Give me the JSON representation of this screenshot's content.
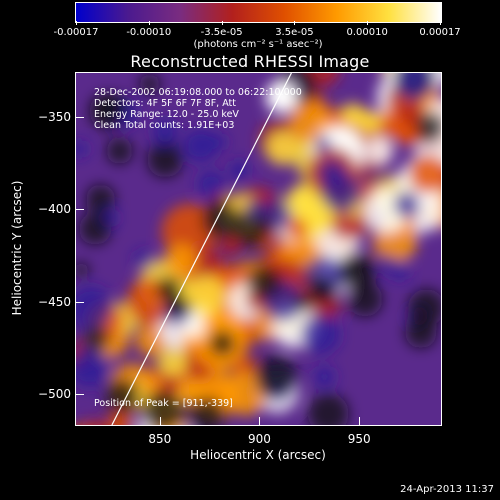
{
  "colorbar": {
    "tick_labels": [
      "-0.00017",
      "-0.00010",
      "-3.5e-05",
      "3.5e-05",
      "0.00010",
      "0.00017"
    ],
    "units_text": "(photons cm⁻² s⁻¹ asec⁻²)",
    "range": [
      -0.00017,
      0.00017
    ],
    "colors": [
      "#0000cc",
      "#4b1a8f",
      "#7a2c80",
      "#b2201d",
      "#e05000",
      "#ff9a00",
      "#ffe040",
      "#ffffff"
    ]
  },
  "title": "Reconstructed RHESSI Image",
  "info": {
    "line1": "28-Dec-2002 06:19:08.000 to 06:22:10.000",
    "line2": "Detectors: 4F 5F 6F 7F 8F, Att",
    "line3": "Energy Range: 12.0 - 25.0 keV",
    "line4": "Clean       Total counts: 1.91E+03",
    "peak": "Position of Peak = [911,-339]"
  },
  "chart_data": {
    "type": "heatmap",
    "title": "Reconstructed RHESSI Image",
    "xlabel": "Heliocentric X (arcsec)",
    "ylabel": "Heliocentric Y (arcsec)",
    "xlim": [
      808,
      991
    ],
    "ylim": [
      -517,
      -326
    ],
    "x_ticks": [
      850,
      900,
      950
    ],
    "y_ticks": [
      -350,
      -400,
      -450,
      -500
    ],
    "x_tick_labels": [
      "850",
      "900",
      "950"
    ],
    "y_tick_labels": [
      "−350",
      "−400",
      "−450",
      "−500"
    ],
    "limb_line": [
      [
        826,
        -517
      ],
      [
        916,
        -326
      ]
    ],
    "peak": [
      911,
      -339
    ]
  },
  "footer": "24-Apr-2013 11:37"
}
